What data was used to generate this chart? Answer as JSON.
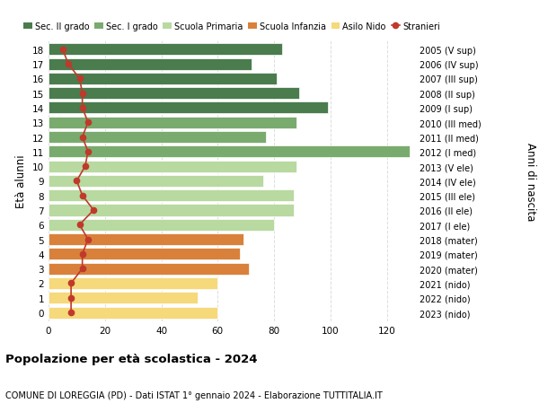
{
  "ages": [
    18,
    17,
    16,
    15,
    14,
    13,
    12,
    11,
    10,
    9,
    8,
    7,
    6,
    5,
    4,
    3,
    2,
    1,
    0
  ],
  "years_labels": [
    "2005 (V sup)",
    "2006 (IV sup)",
    "2007 (III sup)",
    "2008 (II sup)",
    "2009 (I sup)",
    "2010 (III med)",
    "2011 (II med)",
    "2012 (I med)",
    "2013 (V ele)",
    "2014 (IV ele)",
    "2015 (III ele)",
    "2016 (II ele)",
    "2017 (I ele)",
    "2018 (mater)",
    "2019 (mater)",
    "2020 (mater)",
    "2021 (nido)",
    "2022 (nido)",
    "2023 (nido)"
  ],
  "bar_values": [
    83,
    72,
    81,
    89,
    99,
    88,
    77,
    128,
    88,
    76,
    87,
    87,
    80,
    69,
    68,
    71,
    60,
    53,
    60
  ],
  "stranieri_values": [
    5,
    7,
    11,
    12,
    12,
    14,
    12,
    14,
    13,
    10,
    12,
    16,
    11,
    14,
    12,
    12,
    8,
    8,
    8
  ],
  "bar_colors": [
    "#4a7c4e",
    "#4a7c4e",
    "#4a7c4e",
    "#4a7c4e",
    "#4a7c4e",
    "#7aab6e",
    "#7aab6e",
    "#7aab6e",
    "#b8d9a0",
    "#b8d9a0",
    "#b8d9a0",
    "#b8d9a0",
    "#b8d9a0",
    "#d9813a",
    "#d9813a",
    "#d9813a",
    "#f5d97a",
    "#f5d97a",
    "#f5d97a"
  ],
  "legend_labels": [
    "Sec. II grado",
    "Sec. I grado",
    "Scuola Primaria",
    "Scuola Infanzia",
    "Asilo Nido",
    "Stranieri"
  ],
  "legend_colors": [
    "#4a7c4e",
    "#7aab6e",
    "#b8d9a0",
    "#d9813a",
    "#f5d97a",
    "#c0392b"
  ],
  "title": "Popolazione per età scolastica - 2024",
  "subtitle": "COMUNE DI LOREGGIA (PD) - Dati ISTAT 1° gennaio 2024 - Elaborazione TUTTITALIA.IT",
  "ylabel_left": "Età alunni",
  "ylabel_right": "Anni di nascita",
  "xlim": [
    0,
    130
  ],
  "xticks": [
    0,
    20,
    40,
    60,
    80,
    100,
    120
  ],
  "background_color": "#ffffff",
  "grid_color": "#dddddd",
  "stranieri_color": "#c0392b",
  "bar_height": 0.8
}
